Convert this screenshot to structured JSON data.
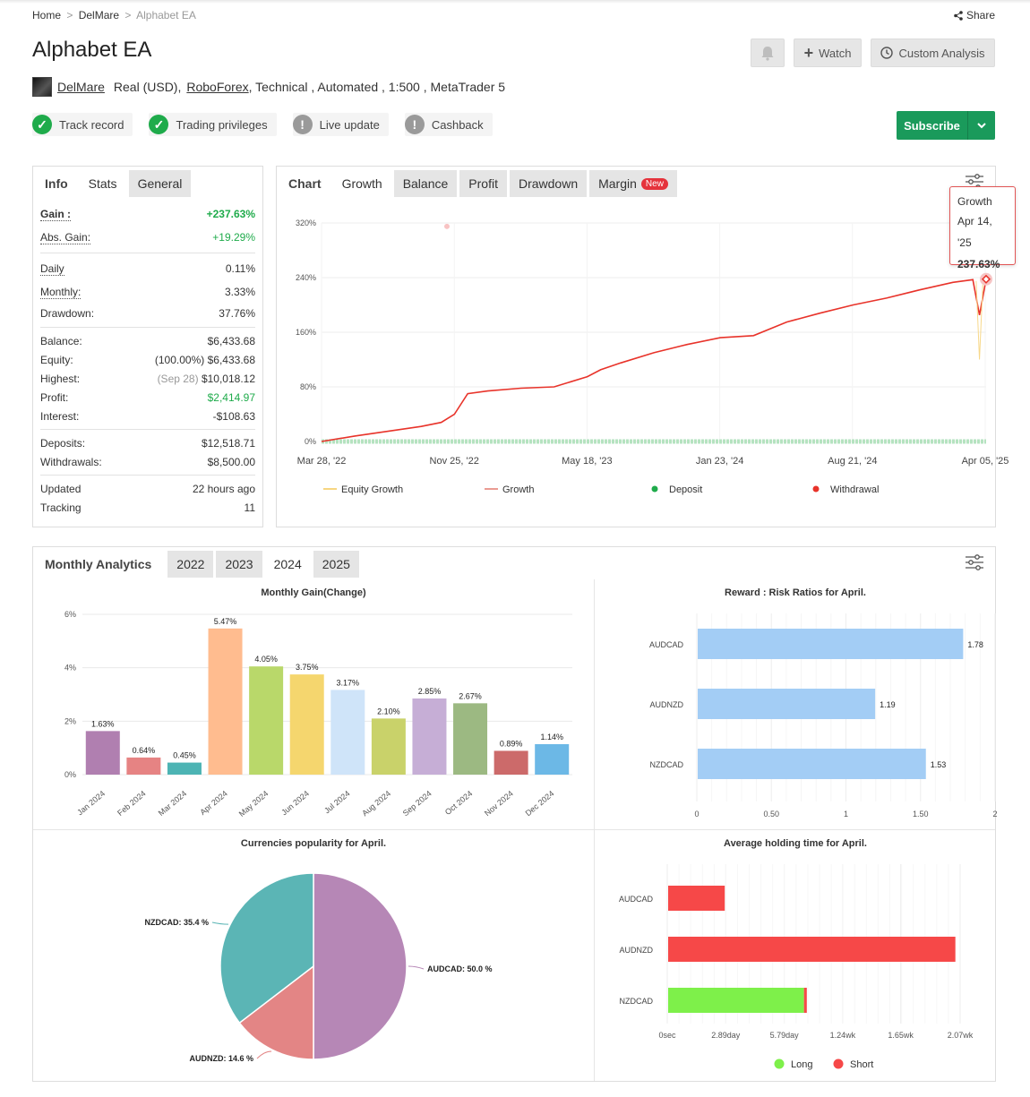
{
  "breadcrumb": {
    "home": "Home",
    "sep": ">",
    "section": "DelMare",
    "current": "Alphabet EA"
  },
  "share_label": "Share",
  "title": "Alphabet EA",
  "buttons": {
    "watch": "Watch",
    "custom_analysis": "Custom Analysis",
    "subscribe": "Subscribe"
  },
  "meta": {
    "author": "DelMare",
    "account_type": "Real (USD),",
    "broker": "RoboForex",
    "rest": ", Technical , Automated , 1:500 , MetaTrader 5"
  },
  "badges": [
    {
      "label": "Track record",
      "status": "ok"
    },
    {
      "label": "Trading privileges",
      "status": "ok"
    },
    {
      "label": "Live update",
      "status": "warn"
    },
    {
      "label": "Cashback",
      "status": "warn"
    }
  ],
  "stats_tabs": [
    "Info",
    "Stats",
    "General"
  ],
  "stats": {
    "gain_label": "Gain :",
    "gain": "+237.63%",
    "abs_gain_label": "Abs. Gain:",
    "abs_gain": "+19.29%",
    "daily_label": "Daily",
    "daily": "0.11%",
    "monthly_label": "Monthly:",
    "monthly": "3.33%",
    "drawdown_label": "Drawdown:",
    "drawdown": "37.76%",
    "balance_label": "Balance:",
    "balance": "$6,433.68",
    "equity_label": "Equity:",
    "equity_pct": "(100.00%)",
    "equity": "$6,433.68",
    "highest_label": "Highest:",
    "highest_date": "(Sep 28)",
    "highest": "$10,018.12",
    "profit_label": "Profit:",
    "profit": "$2,414.97",
    "interest_label": "Interest:",
    "interest": "-$108.63",
    "deposits_label": "Deposits:",
    "deposits": "$12,518.71",
    "withdrawals_label": "Withdrawals:",
    "withdrawals": "$8,500.00",
    "updated_label": "Updated",
    "updated": "22 hours ago",
    "tracking_label": "Tracking",
    "tracking": "11"
  },
  "chart_tabs": {
    "label": "Chart",
    "items": [
      "Growth",
      "Balance",
      "Profit",
      "Drawdown",
      "Margin"
    ],
    "new_badge": "New"
  },
  "tooltip": {
    "title": "Growth",
    "date": "Apr 14, '25",
    "value": "237.63%"
  },
  "monthly_analytics": {
    "label": "Monthly Analytics",
    "years": [
      "2022",
      "2023",
      "2024",
      "2025"
    ]
  },
  "colors": {
    "green": "#1fab4b",
    "growth_line": "#e8332a",
    "bar_blue": "#a3cdf5",
    "long": "#7ef04a",
    "short": "#f64848"
  },
  "chart_data": [
    {
      "type": "line",
      "title": "",
      "x_ticks": [
        "Mar 28, '22",
        "Nov 25, '22",
        "May 18, '23",
        "Jan 23, '24",
        "Aug 21, '24",
        "Apr 05, '25"
      ],
      "y_ticks": [
        "0%",
        "80%",
        "160%",
        "240%",
        "320%"
      ],
      "ylim": [
        0,
        320
      ],
      "legend": [
        "Equity Growth",
        "Growth",
        "Deposit",
        "Withdrawal"
      ],
      "series": [
        {
          "name": "Growth",
          "x": [
            0,
            0.05,
            0.1,
            0.15,
            0.18,
            0.2,
            0.22,
            0.25,
            0.3,
            0.35,
            0.4,
            0.42,
            0.45,
            0.5,
            0.55,
            0.6,
            0.65,
            0.7,
            0.75,
            0.8,
            0.85,
            0.9,
            0.95,
            0.98,
            0.99,
            1.0
          ],
          "values": [
            0,
            8,
            15,
            22,
            28,
            40,
            70,
            74,
            78,
            80,
            95,
            105,
            115,
            130,
            142,
            152,
            155,
            175,
            188,
            200,
            210,
            222,
            233,
            237,
            185,
            237.63
          ]
        }
      ]
    },
    {
      "type": "bar",
      "title": "Monthly Gain(Change)",
      "categories": [
        "Jan 2024",
        "Feb 2024",
        "Mar 2024",
        "Apr 2024",
        "May 2024",
        "Jun 2024",
        "Jul 2024",
        "Aug 2024",
        "Sep 2024",
        "Oct 2024",
        "Nov 2024",
        "Dec 2024"
      ],
      "values": [
        1.63,
        0.64,
        0.45,
        5.47,
        4.05,
        3.75,
        3.17,
        2.1,
        2.85,
        2.67,
        0.89,
        1.14
      ],
      "labels": [
        "1.63%",
        "0.64%",
        "0.45%",
        "5.47%",
        "4.05%",
        "3.75%",
        "3.17%",
        "2.10%",
        "2.85%",
        "2.67%",
        "0.89%",
        "1.14%"
      ],
      "colors": [
        "#b07fb0",
        "#e68383",
        "#4db4b4",
        "#ffbc8f",
        "#b9d86a",
        "#f5d66e",
        "#cfe4f9",
        "#c9d26a",
        "#c6aed6",
        "#9cb982",
        "#cc6a6a",
        "#6cb8e6"
      ],
      "y_ticks": [
        "0%",
        "2%",
        "4%",
        "6%"
      ],
      "ylim": [
        0,
        6
      ]
    },
    {
      "type": "bar",
      "title": "Reward : Risk Ratios for April.",
      "categories": [
        "AUDCAD",
        "AUDNZD",
        "NZDCAD"
      ],
      "values": [
        1.78,
        1.19,
        1.53
      ],
      "x_ticks": [
        "0",
        "0.50",
        "1",
        "1.50",
        "2"
      ],
      "xlim": [
        0,
        2
      ]
    },
    {
      "type": "pie",
      "title": "Currencies popularity for April.",
      "categories": [
        "AUDCAD",
        "AUDNZD",
        "NZDCAD"
      ],
      "values": [
        50.0,
        14.6,
        35.4
      ],
      "labels": [
        "AUDCAD: 50.0 %",
        "AUDNZD: 14.6 %",
        "NZDCAD: 35.4 %"
      ],
      "colors": [
        "#b687b6",
        "#e38585",
        "#5bb5b5"
      ]
    },
    {
      "type": "bar",
      "title": "Average holding time for April.",
      "categories": [
        "AUDCAD",
        "AUDNZD",
        "NZDCAD"
      ],
      "x_ticks": [
        "0sec",
        "2.89day",
        "5.79day",
        "1.24wk",
        "1.65wk",
        "2.07wk"
      ],
      "series": [
        {
          "name": "Long",
          "values": [
            0,
            0,
            0.96
          ]
        },
        {
          "name": "Short",
          "values": [
            0.4,
            2.03,
            0.02
          ]
        }
      ],
      "legend": [
        "Long",
        "Short"
      ]
    }
  ]
}
